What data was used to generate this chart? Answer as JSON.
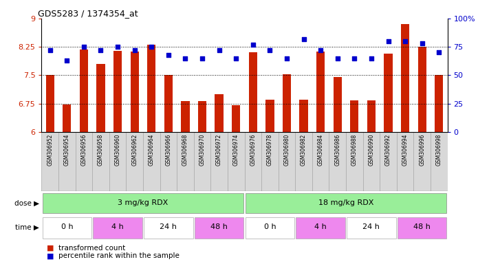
{
  "title": "GDS5283 / 1374354_at",
  "samples": [
    "GSM306952",
    "GSM306954",
    "GSM306956",
    "GSM306958",
    "GSM306960",
    "GSM306962",
    "GSM306964",
    "GSM306966",
    "GSM306968",
    "GSM306970",
    "GSM306972",
    "GSM306974",
    "GSM306976",
    "GSM306978",
    "GSM306980",
    "GSM306982",
    "GSM306984",
    "GSM306986",
    "GSM306988",
    "GSM306990",
    "GSM306992",
    "GSM306994",
    "GSM306996",
    "GSM306998"
  ],
  "bar_values": [
    7.5,
    6.72,
    8.18,
    7.8,
    8.15,
    8.12,
    8.3,
    7.5,
    6.82,
    6.82,
    7.0,
    6.7,
    8.1,
    6.85,
    7.52,
    6.85,
    8.12,
    7.45,
    6.84,
    6.84,
    8.08,
    8.85,
    8.25,
    7.5
  ],
  "percentile_values": [
    72,
    63,
    75,
    72,
    75,
    72,
    75,
    68,
    65,
    65,
    72,
    65,
    77,
    72,
    65,
    82,
    72,
    65,
    65,
    65,
    80,
    80,
    78,
    70
  ],
  "bar_color": "#cc2200",
  "dot_color": "#0000cc",
  "ylim_left": [
    6,
    9
  ],
  "ylim_right": [
    0,
    100
  ],
  "yticks_left": [
    6,
    6.75,
    7.5,
    8.25,
    9
  ],
  "ytick_labels_left": [
    "6",
    "6.75",
    "7.5",
    "8.25",
    "9"
  ],
  "yticks_right": [
    0,
    25,
    50,
    75,
    100
  ],
  "ytick_labels_right": [
    "0",
    "25",
    "50",
    "75",
    "100%"
  ],
  "hlines": [
    6.75,
    7.5,
    8.25
  ],
  "dose_labels": [
    "3 mg/kg RDX",
    "18 mg/kg RDX"
  ],
  "dose_color": "#99ee99",
  "time_labels": [
    "0 h",
    "4 h",
    "24 h",
    "48 h",
    "0 h",
    "4 h",
    "24 h",
    "48 h"
  ],
  "time_colors": [
    "#ffffff",
    "#ee88ee",
    "#ffffff",
    "#ee88ee",
    "#ffffff",
    "#ee88ee",
    "#ffffff",
    "#ee88ee"
  ],
  "time_group_sizes": [
    3,
    3,
    3,
    3,
    3,
    3,
    3,
    3
  ],
  "bg_color": "#ffffff",
  "plot_bg": "#ffffff",
  "label_bg": "#d8d8d8",
  "axis_color_left": "#cc2200",
  "axis_color_right": "#0000cc",
  "legend_items": [
    "transformed count",
    "percentile rank within the sample"
  ]
}
